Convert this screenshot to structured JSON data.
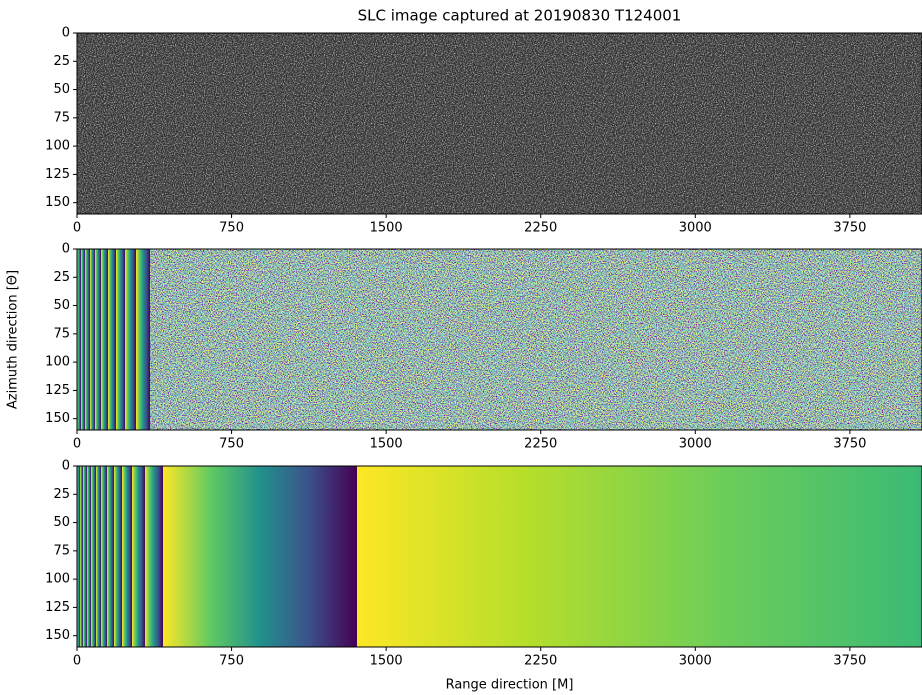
{
  "chart_data": [
    {
      "type": "image",
      "title": "SLC image captured at 20190830 T124001",
      "colormap": "gray",
      "xlim": [
        0,
        4100
      ],
      "ylim": [
        160,
        0
      ],
      "xticks": [
        0,
        750,
        1500,
        2250,
        3000,
        3750
      ],
      "yticks": [
        0,
        25,
        50,
        75,
        100,
        125,
        150
      ]
    },
    {
      "type": "image",
      "y_label": "Azimuth direction [Θ]",
      "colormap": "viridis-noise",
      "xlim": [
        0,
        4100
      ],
      "ylim": [
        160,
        0
      ],
      "xticks": [
        0,
        750,
        1500,
        2250,
        3000,
        3750
      ],
      "yticks": [
        0,
        25,
        50,
        75,
        100,
        125,
        150
      ]
    },
    {
      "type": "image",
      "x_label": "Range direction [M]",
      "colormap": "viridis-phase",
      "xlim": [
        0,
        4100
      ],
      "ylim": [
        160,
        0
      ],
      "xticks": [
        0,
        750,
        1500,
        2250,
        3000,
        3750
      ],
      "yticks": [
        0,
        25,
        50,
        75,
        100,
        125,
        150
      ]
    }
  ]
}
